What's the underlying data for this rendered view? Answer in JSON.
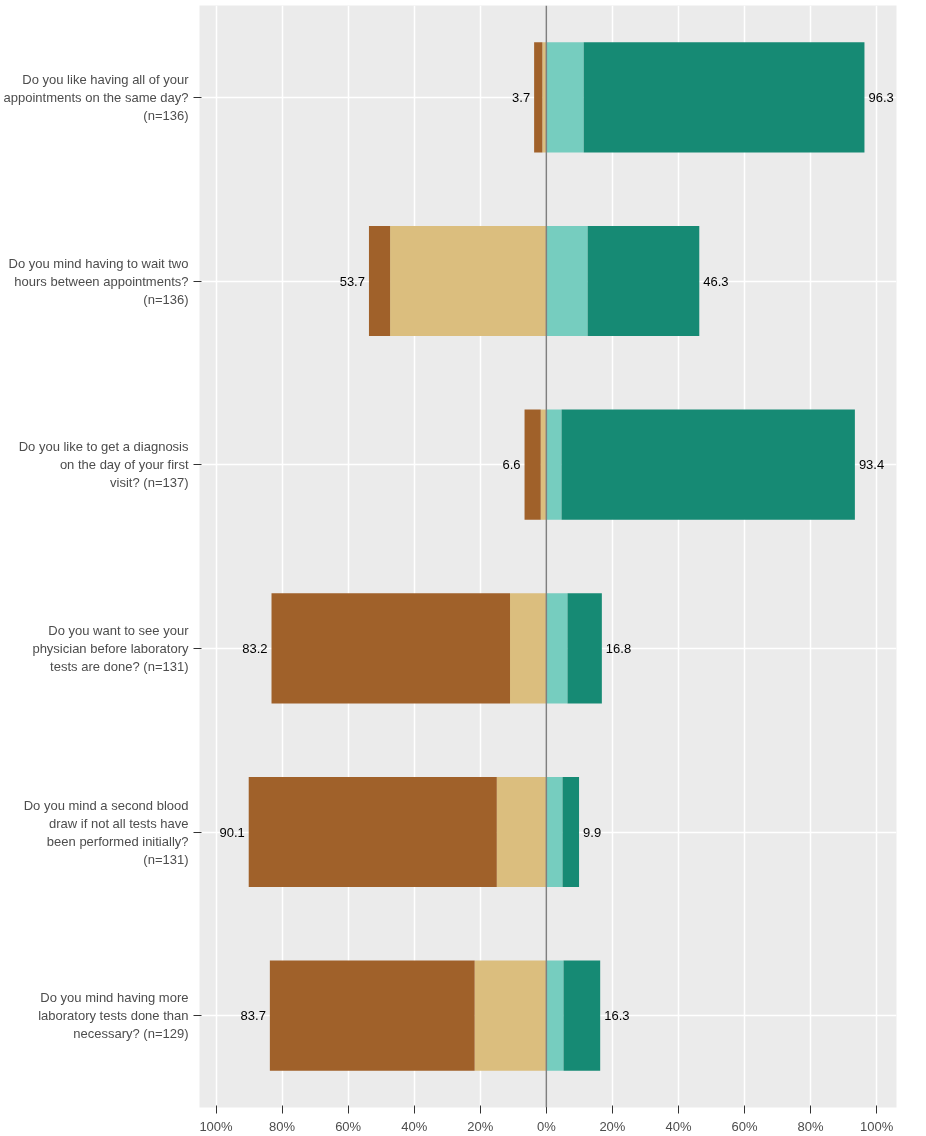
{
  "chart_data": {
    "type": "bar",
    "orientation": "horizontal",
    "stacked": true,
    "categories": [
      "Do you like having all of your\nappointments on the same day?\n(n=136)",
      "Do you mind having to wait two\nhours between appointments?\n(n=136)",
      "Do you like to get a diagnosis\non the day of your first\nvisit? (n=137)",
      "Do you want to see your\nphysician before laboratory\ntests are done? (n=131)",
      "Do you mind a second blood\ndraw if not all tests have\nbeen performed initially?\n(n=131)",
      "Do you mind having more\nlaboratory tests done than\nnecessary? (n=129)"
    ],
    "series": [
      {
        "color": "#dbbe7e",
        "values": [
          -1.2,
          -47.3,
          -1.7,
          -11.0,
          -15.0,
          -21.7
        ]
      },
      {
        "color": "#a0612a",
        "values": [
          -2.5,
          -6.4,
          -4.9,
          -72.2,
          -75.1,
          -62.0
        ]
      },
      {
        "color": "#76cdbf",
        "values": [
          11.3,
          12.5,
          4.6,
          6.4,
          4.9,
          5.2
        ]
      },
      {
        "color": "#168a74",
        "values": [
          85.0,
          33.8,
          88.8,
          10.4,
          5.0,
          11.1
        ]
      }
    ],
    "xlim": [
      -105,
      106
    ],
    "xticks": [
      {
        "value": -100,
        "label": "100%"
      },
      {
        "value": -80,
        "label": "80%"
      },
      {
        "value": -60,
        "label": "60%"
      },
      {
        "value": -40,
        "label": "40%"
      },
      {
        "value": -20,
        "label": "20%"
      },
      {
        "value": 0,
        "label": "0%"
      },
      {
        "value": 20,
        "label": "20%"
      },
      {
        "value": 40,
        "label": "40%"
      },
      {
        "value": 60,
        "label": "60%"
      },
      {
        "value": 80,
        "label": "80%"
      },
      {
        "value": 100,
        "label": "100%"
      }
    ],
    "ref_lines": [
      {
        "axis": "x",
        "value": 0,
        "color": "#7f7f7f"
      }
    ],
    "annotations": [
      "3.7",
      "96.3",
      "53.7",
      "46.3",
      "6.6",
      "93.4",
      "83.2",
      "16.8",
      "90.1",
      "9.9",
      "83.7",
      "16.3"
    ],
    "grid": true
  }
}
